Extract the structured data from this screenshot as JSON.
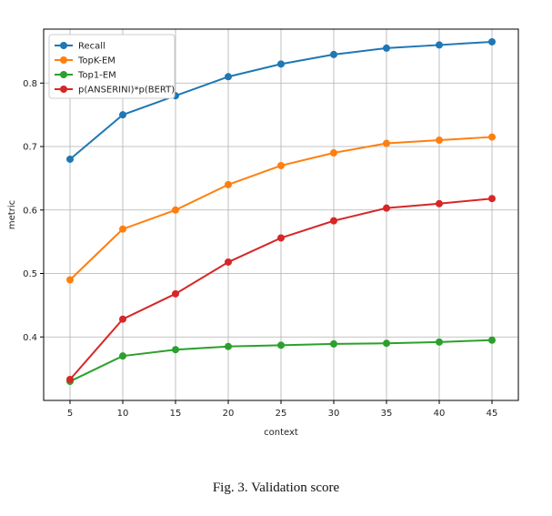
{
  "caption": "Fig. 3.   Validation score",
  "chart_data": {
    "type": "line",
    "title": "",
    "xlabel": "context",
    "ylabel": "metric",
    "x": [
      5,
      10,
      15,
      20,
      25,
      30,
      35,
      40,
      45
    ],
    "xlim": [
      2.5,
      47.5
    ],
    "ylim": [
      0.3,
      0.885
    ],
    "xticks": [
      5,
      10,
      15,
      20,
      25,
      30,
      35,
      40,
      45
    ],
    "yticks": [
      0.4,
      0.5,
      0.6,
      0.7,
      0.8
    ],
    "ytick_labels": [
      "0.4",
      "0.5",
      "0.6",
      "0.7",
      "0.8"
    ],
    "grid": true,
    "legend_position": "top-left",
    "series": [
      {
        "name": "Recall",
        "color": "#1f77b4",
        "values": [
          0.68,
          0.75,
          0.78,
          0.81,
          0.83,
          0.845,
          0.855,
          0.86,
          0.865
        ]
      },
      {
        "name": "TopK-EM",
        "color": "#ff7f0e",
        "values": [
          0.49,
          0.57,
          0.6,
          0.64,
          0.67,
          0.69,
          0.705,
          0.71,
          0.715
        ]
      },
      {
        "name": "Top1-EM",
        "color": "#2ca02c",
        "values": [
          0.33,
          0.37,
          0.38,
          0.385,
          0.387,
          0.389,
          0.39,
          0.392,
          0.395
        ]
      },
      {
        "name": "p(ANSERINI)*p(BERT)",
        "color": "#d62728",
        "values": [
          0.333,
          0.428,
          0.468,
          0.518,
          0.556,
          0.583,
          0.603,
          0.61,
          0.618
        ]
      }
    ]
  }
}
